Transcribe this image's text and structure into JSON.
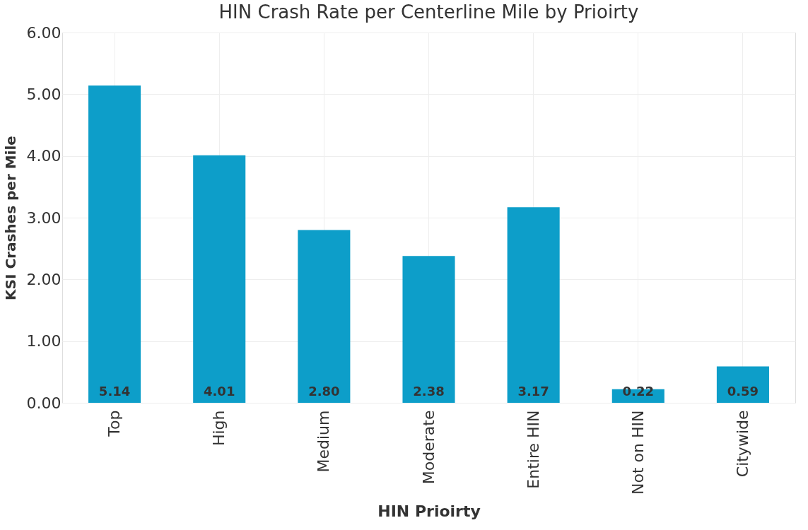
{
  "chart_data": {
    "type": "bar",
    "title": "HIN Crash Rate per Centerline Mile by Prioirty",
    "xlabel": "HIN Prioirty",
    "ylabel": "KSI Crashes per Mile",
    "categories": [
      "Top",
      "High",
      "Medium",
      "Moderate",
      "Entire HIN",
      "Not on HIN",
      "Citywide"
    ],
    "values": [
      5.14,
      4.01,
      2.8,
      2.38,
      3.17,
      0.22,
      0.59
    ],
    "value_labels": [
      "5.14",
      "4.01",
      "2.80",
      "2.38",
      "3.17",
      "0.22",
      "0.59"
    ],
    "color": "#0d9ec9",
    "ylim": [
      0,
      6
    ],
    "yticks": [
      {
        "value": 0,
        "label": "0.00"
      },
      {
        "value": 1,
        "label": "1.00"
      },
      {
        "value": 2,
        "label": "2.00"
      },
      {
        "value": 3,
        "label": "3.00"
      },
      {
        "value": 4,
        "label": "4.00"
      },
      {
        "value": 5,
        "label": "5.00"
      },
      {
        "value": 6,
        "label": "6.00"
      }
    ],
    "grid": true
  }
}
